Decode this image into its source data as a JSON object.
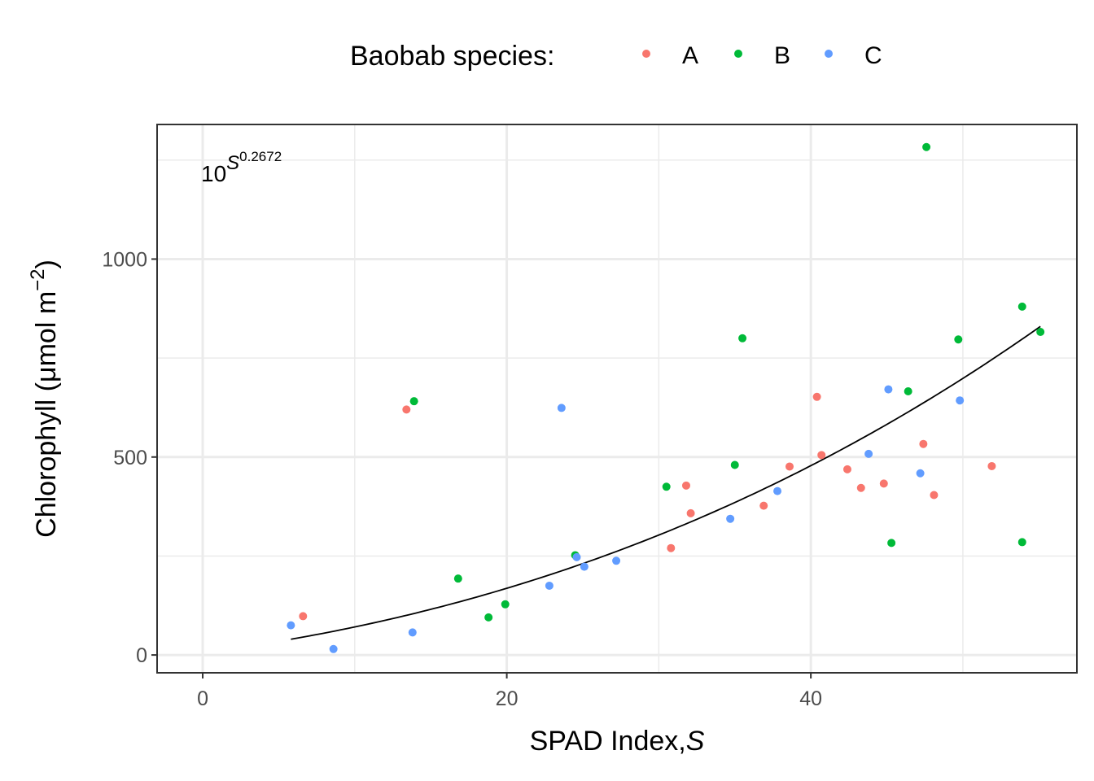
{
  "chart_data": {
    "type": "scatter",
    "xlabel": "SPAD Index,",
    "xlabel_italic": "S",
    "ylabel": "Chlorophyll (μmol m",
    "ylabel_superscript": "−2",
    "ylabel_close": ")",
    "xlim": [
      -3,
      57.5
    ],
    "ylim": [
      -45,
      1340
    ],
    "x_ticks": [
      0,
      20,
      40
    ],
    "y_ticks": [
      0,
      500,
      1000
    ],
    "grid": true,
    "legend": {
      "title": "Baobab species:",
      "position": "top",
      "items": [
        "A",
        "B",
        "C"
      ]
    },
    "colors": {
      "A": "#F8766D",
      "B": "#00BA38",
      "C": "#619CFF",
      "fit": "#000000",
      "panel_border": "#333333",
      "grid": "#ebebeb"
    },
    "annotation": {
      "base": "10",
      "exp_var": "S",
      "exp_power": "0.2672"
    },
    "series": [
      {
        "name": "A",
        "points": [
          [
            6.6,
            98
          ],
          [
            13.4,
            620
          ],
          [
            30.8,
            270
          ],
          [
            31.8,
            428
          ],
          [
            32.1,
            358
          ],
          [
            36.9,
            377
          ],
          [
            38.6,
            476
          ],
          [
            40.4,
            652
          ],
          [
            40.7,
            505
          ],
          [
            42.4,
            469
          ],
          [
            43.3,
            422
          ],
          [
            44.8,
            433
          ],
          [
            47.4,
            533
          ],
          [
            48.1,
            404
          ],
          [
            51.9,
            477
          ]
        ]
      },
      {
        "name": "B",
        "points": [
          [
            13.9,
            641
          ],
          [
            16.8,
            193
          ],
          [
            18.8,
            95
          ],
          [
            19.9,
            128
          ],
          [
            24.5,
            252
          ],
          [
            30.5,
            425
          ],
          [
            35.0,
            480
          ],
          [
            35.5,
            800
          ],
          [
            45.3,
            283
          ],
          [
            46.4,
            666
          ],
          [
            47.6,
            1283
          ],
          [
            49.7,
            797
          ],
          [
            53.9,
            880
          ],
          [
            53.9,
            285
          ],
          [
            55.1,
            816
          ]
        ]
      },
      {
        "name": "C",
        "points": [
          [
            5.8,
            75
          ],
          [
            8.6,
            15
          ],
          [
            13.8,
            57
          ],
          [
            22.8,
            175
          ],
          [
            23.6,
            624
          ],
          [
            24.6,
            247
          ],
          [
            25.1,
            223
          ],
          [
            27.2,
            238
          ],
          [
            34.7,
            344
          ],
          [
            37.8,
            414
          ],
          [
            43.8,
            508
          ],
          [
            45.1,
            671
          ],
          [
            47.2,
            459
          ],
          [
            49.8,
            643
          ]
        ]
      }
    ],
    "fit_curve": {
      "label": "10^(S^0.2672)",
      "base": 10,
      "power": 0.2672,
      "x_range": [
        5.8,
        55.1
      ]
    }
  }
}
